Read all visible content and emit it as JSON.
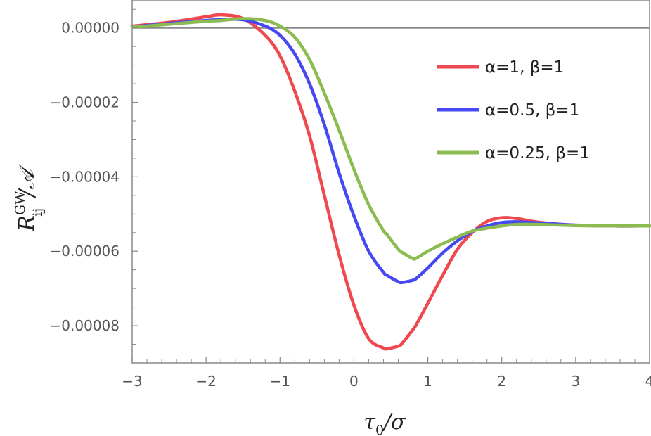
{
  "chart_data": {
    "type": "line",
    "xlabel_parts": {
      "main": "τ",
      "sub": "0",
      "rest": "/σ"
    },
    "ylabel_parts": {
      "main": "R",
      "sup": "GW",
      "sub": "ij",
      "rest": "/𝒜"
    },
    "xlim": [
      -3,
      4
    ],
    "ylim": [
      -9e-05,
      7.5e-06
    ],
    "x_ticks": [
      -3,
      -2,
      -1,
      0,
      1,
      2,
      3,
      4
    ],
    "x_tick_labels": [
      "−3",
      "−2",
      "−1",
      "0",
      "1",
      "2",
      "3",
      "4"
    ],
    "y_ticks": [
      0,
      -2e-05,
      -4e-05,
      -6e-05,
      -8e-05
    ],
    "y_tick_labels": [
      "0.00000",
      "−0.00002",
      "−0.00004",
      "−0.00006",
      "−0.00008"
    ],
    "legend_position": "top-right",
    "grid": false,
    "x": [
      -3.0,
      -2.5,
      -2.0,
      -1.8,
      -1.5,
      -1.2,
      -1.0,
      -0.8,
      -0.6,
      -0.4,
      -0.2,
      0.0,
      0.2,
      0.4,
      0.45,
      0.6,
      0.65,
      0.8,
      0.85,
      1.0,
      1.2,
      1.4,
      1.6,
      1.8,
      2.0,
      2.2,
      2.5,
      3.0,
      3.5,
      4.0
    ],
    "series": [
      {
        "name": "α=1, β=1",
        "color": "#f0484f",
        "values": [
          5e-07,
          1.5e-06,
          3e-06,
          3.5e-06,
          2.5e-06,
          -2e-06,
          -7.5e-06,
          -1.7e-05,
          -2.9e-05,
          -4.5e-05,
          -6.1e-05,
          -7.45e-05,
          -8.35e-05,
          -8.6e-05,
          -8.62e-05,
          -8.55e-05,
          -8.48e-05,
          -8.1e-05,
          -7.95e-05,
          -7.4e-05,
          -6.65e-05,
          -5.95e-05,
          -5.5e-05,
          -5.2e-05,
          -5.1e-05,
          -5.12e-05,
          -5.22e-05,
          -5.3e-05,
          -5.32e-05,
          -5.32e-05
        ]
      },
      {
        "name": "α=0.5, β=1",
        "color": "#4648f2",
        "values": [
          3e-07,
          1.2e-06,
          2e-06,
          2.2e-06,
          2.2e-06,
          5e-07,
          -2e-06,
          -7e-06,
          -1.5e-05,
          -2.6e-05,
          -3.9e-05,
          -5.05e-05,
          -6e-05,
          -6.57e-05,
          -6.65e-05,
          -6.82e-05,
          -6.84e-05,
          -6.78e-05,
          -6.72e-05,
          -6.45e-05,
          -6.05e-05,
          -5.72e-05,
          -5.47e-05,
          -5.32e-05,
          -5.23e-05,
          -5.21e-05,
          -5.24e-05,
          -5.3e-05,
          -5.32e-05,
          -5.32e-05
        ]
      },
      {
        "name": "α=0.25, β=1",
        "color": "#8cbc50",
        "values": [
          2e-07,
          1e-06,
          1.8e-06,
          2e-06,
          2.5e-06,
          2e-06,
          5e-07,
          -2.5e-06,
          -8.5e-06,
          -1.75e-05,
          -2.75e-05,
          -3.8e-05,
          -4.75e-05,
          -5.45e-05,
          -5.56e-05,
          -5.95e-05,
          -6.03e-05,
          -6.2e-05,
          -6.18e-05,
          -6e-05,
          -5.8e-05,
          -5.62e-05,
          -5.46e-05,
          -5.38e-05,
          -5.32e-05,
          -5.28e-05,
          -5.28e-05,
          -5.31e-05,
          -5.32e-05,
          -5.32e-05
        ]
      }
    ]
  }
}
